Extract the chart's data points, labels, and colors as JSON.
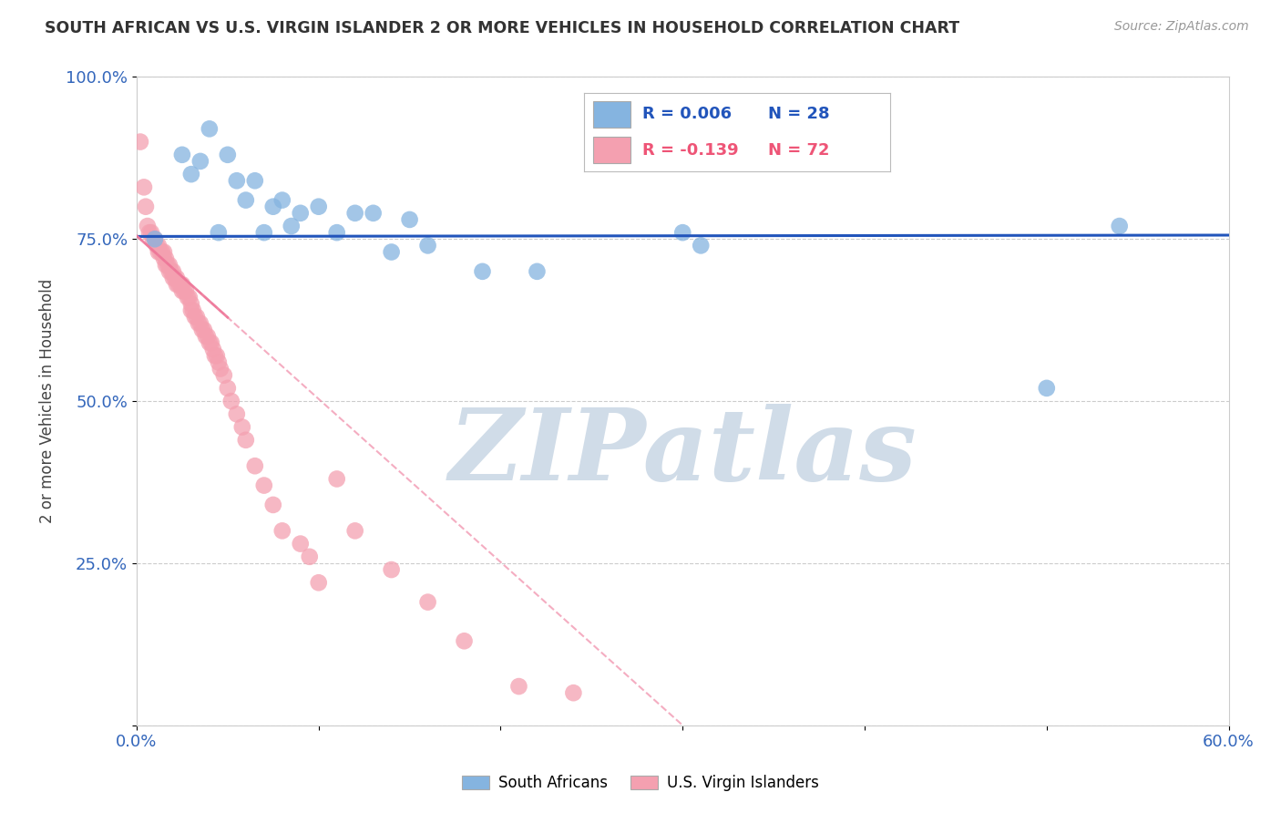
{
  "title": "SOUTH AFRICAN VS U.S. VIRGIN ISLANDER 2 OR MORE VEHICLES IN HOUSEHOLD CORRELATION CHART",
  "source_text": "Source: ZipAtlas.com",
  "ylabel": "2 or more Vehicles in Household",
  "xlim": [
    0.0,
    0.6
  ],
  "ylim": [
    0.0,
    1.0
  ],
  "xticks": [
    0.0,
    0.1,
    0.2,
    0.3,
    0.4,
    0.5,
    0.6
  ],
  "xticklabels": [
    "0.0%",
    "",
    "",
    "",
    "",
    "",
    "60.0%"
  ],
  "yticks": [
    0.0,
    0.25,
    0.5,
    0.75,
    1.0
  ],
  "yticklabels": [
    "",
    "25.0%",
    "50.0%",
    "75.0%",
    "100.0%"
  ],
  "blue_color": "#85B4E0",
  "pink_color": "#F4A0B0",
  "blue_line_color": "#2255BB",
  "pink_line_color": "#EE7799",
  "R_blue": 0.006,
  "N_blue": 28,
  "R_pink": -0.139,
  "N_pink": 72,
  "watermark": "ZIPatlas",
  "watermark_color": "#D0DCE8",
  "blue_scatter_x": [
    0.01,
    0.025,
    0.03,
    0.035,
    0.04,
    0.045,
    0.05,
    0.055,
    0.06,
    0.065,
    0.07,
    0.075,
    0.08,
    0.085,
    0.09,
    0.1,
    0.11,
    0.12,
    0.13,
    0.14,
    0.15,
    0.16,
    0.19,
    0.22,
    0.3,
    0.31,
    0.5,
    0.54
  ],
  "blue_scatter_y": [
    0.75,
    0.88,
    0.85,
    0.87,
    0.92,
    0.76,
    0.88,
    0.84,
    0.81,
    0.84,
    0.76,
    0.8,
    0.81,
    0.77,
    0.79,
    0.8,
    0.76,
    0.79,
    0.79,
    0.73,
    0.78,
    0.74,
    0.7,
    0.7,
    0.76,
    0.74,
    0.52,
    0.77
  ],
  "pink_scatter_x": [
    0.002,
    0.004,
    0.005,
    0.006,
    0.007,
    0.008,
    0.009,
    0.01,
    0.011,
    0.012,
    0.012,
    0.013,
    0.014,
    0.015,
    0.015,
    0.016,
    0.016,
    0.017,
    0.018,
    0.018,
    0.019,
    0.02,
    0.02,
    0.021,
    0.022,
    0.022,
    0.023,
    0.024,
    0.025,
    0.025,
    0.026,
    0.027,
    0.028,
    0.029,
    0.03,
    0.03,
    0.031,
    0.032,
    0.033,
    0.034,
    0.035,
    0.036,
    0.037,
    0.038,
    0.039,
    0.04,
    0.041,
    0.042,
    0.043,
    0.044,
    0.045,
    0.046,
    0.048,
    0.05,
    0.052,
    0.055,
    0.058,
    0.06,
    0.065,
    0.07,
    0.075,
    0.08,
    0.09,
    0.095,
    0.1,
    0.11,
    0.12,
    0.14,
    0.16,
    0.18,
    0.21,
    0.24
  ],
  "pink_scatter_y": [
    0.9,
    0.83,
    0.8,
    0.77,
    0.76,
    0.76,
    0.75,
    0.75,
    0.74,
    0.74,
    0.73,
    0.73,
    0.73,
    0.73,
    0.72,
    0.72,
    0.71,
    0.71,
    0.71,
    0.7,
    0.7,
    0.7,
    0.69,
    0.69,
    0.69,
    0.68,
    0.68,
    0.68,
    0.68,
    0.67,
    0.67,
    0.67,
    0.66,
    0.66,
    0.65,
    0.64,
    0.64,
    0.63,
    0.63,
    0.62,
    0.62,
    0.61,
    0.61,
    0.6,
    0.6,
    0.59,
    0.59,
    0.58,
    0.57,
    0.57,
    0.56,
    0.55,
    0.54,
    0.52,
    0.5,
    0.48,
    0.46,
    0.44,
    0.4,
    0.37,
    0.34,
    0.3,
    0.28,
    0.26,
    0.22,
    0.38,
    0.3,
    0.24,
    0.19,
    0.13,
    0.06,
    0.05
  ],
  "blue_line_y0": 0.754,
  "blue_line_y1": 0.756,
  "pink_line_x0": 0.0,
  "pink_line_y0": 0.755,
  "pink_line_x1": 0.3,
  "pink_line_y1": 0.0
}
